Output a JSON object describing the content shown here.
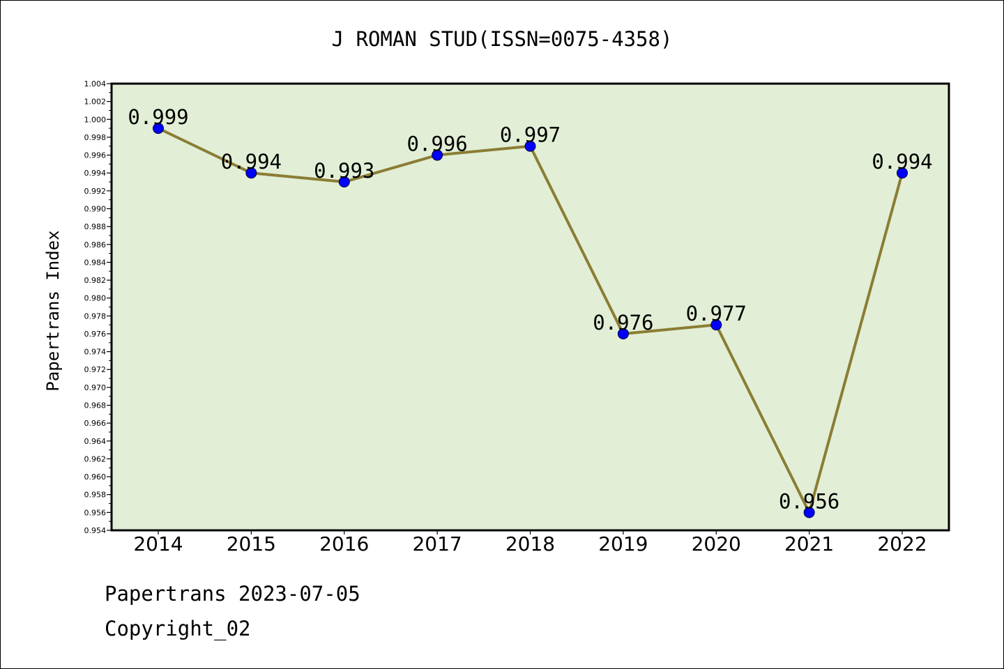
{
  "chart_data": {
    "type": "line",
    "title": "J ROMAN STUD(ISSN=0075-4358)",
    "xlabel": "",
    "ylabel": "Papertrans Index",
    "categories": [
      "2014",
      "2015",
      "2016",
      "2017",
      "2018",
      "2019",
      "2020",
      "2021",
      "2022"
    ],
    "series": [
      {
        "values": [
          0.999,
          0.994,
          0.993,
          0.996,
          0.997,
          0.976,
          0.977,
          0.956,
          0.994
        ],
        "data_labels": [
          "0.999",
          "0.994",
          "0.993",
          "0.996",
          "0.997",
          "0.976",
          "0.977",
          "0.956",
          "0.994"
        ]
      }
    ],
    "ylim": [
      0.954,
      1.004
    ],
    "ytick_labels": [
      "0.954",
      "0.956",
      "0.958",
      "0.960",
      "0.962",
      "0.964",
      "0.966",
      "0.968",
      "0.970",
      "0.972",
      "0.974",
      "0.976",
      "0.978",
      "0.980",
      "0.982",
      "0.984",
      "0.986",
      "0.988",
      "0.990",
      "0.992",
      "0.994",
      "0.996",
      "0.998",
      "1.000",
      "1.002",
      "1.004"
    ],
    "grid": false,
    "colors": {
      "plot_background": "#e2efd6",
      "line": "#8b7d35",
      "marker": "#0000ff"
    }
  },
  "footer": {
    "line1": "Papertrans 2023-07-05",
    "line2": "Copyright_02"
  }
}
